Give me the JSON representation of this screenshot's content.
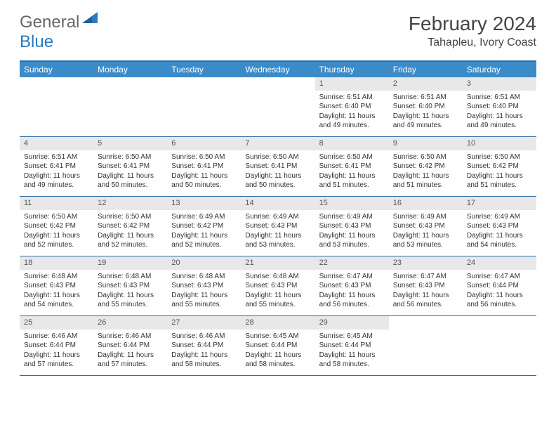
{
  "logo": {
    "general": "General",
    "blue": "Blue"
  },
  "header": {
    "month_title": "February 2024",
    "location": "Tahapleu, Ivory Coast"
  },
  "colors": {
    "header_bar": "#3b8bc9",
    "border": "#2a6da8",
    "daynum_bg": "#e8e8e8",
    "text": "#333333",
    "logo_blue": "#2a7abf"
  },
  "weekdays": [
    "Sunday",
    "Monday",
    "Tuesday",
    "Wednesday",
    "Thursday",
    "Friday",
    "Saturday"
  ],
  "weeks": [
    [
      {
        "empty": true
      },
      {
        "empty": true
      },
      {
        "empty": true
      },
      {
        "empty": true
      },
      {
        "num": "1",
        "sunrise": "Sunrise: 6:51 AM",
        "sunset": "Sunset: 6:40 PM",
        "daylight": "Daylight: 11 hours and 49 minutes."
      },
      {
        "num": "2",
        "sunrise": "Sunrise: 6:51 AM",
        "sunset": "Sunset: 6:40 PM",
        "daylight": "Daylight: 11 hours and 49 minutes."
      },
      {
        "num": "3",
        "sunrise": "Sunrise: 6:51 AM",
        "sunset": "Sunset: 6:40 PM",
        "daylight": "Daylight: 11 hours and 49 minutes."
      }
    ],
    [
      {
        "num": "4",
        "sunrise": "Sunrise: 6:51 AM",
        "sunset": "Sunset: 6:41 PM",
        "daylight": "Daylight: 11 hours and 49 minutes."
      },
      {
        "num": "5",
        "sunrise": "Sunrise: 6:50 AM",
        "sunset": "Sunset: 6:41 PM",
        "daylight": "Daylight: 11 hours and 50 minutes."
      },
      {
        "num": "6",
        "sunrise": "Sunrise: 6:50 AM",
        "sunset": "Sunset: 6:41 PM",
        "daylight": "Daylight: 11 hours and 50 minutes."
      },
      {
        "num": "7",
        "sunrise": "Sunrise: 6:50 AM",
        "sunset": "Sunset: 6:41 PM",
        "daylight": "Daylight: 11 hours and 50 minutes."
      },
      {
        "num": "8",
        "sunrise": "Sunrise: 6:50 AM",
        "sunset": "Sunset: 6:41 PM",
        "daylight": "Daylight: 11 hours and 51 minutes."
      },
      {
        "num": "9",
        "sunrise": "Sunrise: 6:50 AM",
        "sunset": "Sunset: 6:42 PM",
        "daylight": "Daylight: 11 hours and 51 minutes."
      },
      {
        "num": "10",
        "sunrise": "Sunrise: 6:50 AM",
        "sunset": "Sunset: 6:42 PM",
        "daylight": "Daylight: 11 hours and 51 minutes."
      }
    ],
    [
      {
        "num": "11",
        "sunrise": "Sunrise: 6:50 AM",
        "sunset": "Sunset: 6:42 PM",
        "daylight": "Daylight: 11 hours and 52 minutes."
      },
      {
        "num": "12",
        "sunrise": "Sunrise: 6:50 AM",
        "sunset": "Sunset: 6:42 PM",
        "daylight": "Daylight: 11 hours and 52 minutes."
      },
      {
        "num": "13",
        "sunrise": "Sunrise: 6:49 AM",
        "sunset": "Sunset: 6:42 PM",
        "daylight": "Daylight: 11 hours and 52 minutes."
      },
      {
        "num": "14",
        "sunrise": "Sunrise: 6:49 AM",
        "sunset": "Sunset: 6:43 PM",
        "daylight": "Daylight: 11 hours and 53 minutes."
      },
      {
        "num": "15",
        "sunrise": "Sunrise: 6:49 AM",
        "sunset": "Sunset: 6:43 PM",
        "daylight": "Daylight: 11 hours and 53 minutes."
      },
      {
        "num": "16",
        "sunrise": "Sunrise: 6:49 AM",
        "sunset": "Sunset: 6:43 PM",
        "daylight": "Daylight: 11 hours and 53 minutes."
      },
      {
        "num": "17",
        "sunrise": "Sunrise: 6:49 AM",
        "sunset": "Sunset: 6:43 PM",
        "daylight": "Daylight: 11 hours and 54 minutes."
      }
    ],
    [
      {
        "num": "18",
        "sunrise": "Sunrise: 6:48 AM",
        "sunset": "Sunset: 6:43 PM",
        "daylight": "Daylight: 11 hours and 54 minutes."
      },
      {
        "num": "19",
        "sunrise": "Sunrise: 6:48 AM",
        "sunset": "Sunset: 6:43 PM",
        "daylight": "Daylight: 11 hours and 55 minutes."
      },
      {
        "num": "20",
        "sunrise": "Sunrise: 6:48 AM",
        "sunset": "Sunset: 6:43 PM",
        "daylight": "Daylight: 11 hours and 55 minutes."
      },
      {
        "num": "21",
        "sunrise": "Sunrise: 6:48 AM",
        "sunset": "Sunset: 6:43 PM",
        "daylight": "Daylight: 11 hours and 55 minutes."
      },
      {
        "num": "22",
        "sunrise": "Sunrise: 6:47 AM",
        "sunset": "Sunset: 6:43 PM",
        "daylight": "Daylight: 11 hours and 56 minutes."
      },
      {
        "num": "23",
        "sunrise": "Sunrise: 6:47 AM",
        "sunset": "Sunset: 6:43 PM",
        "daylight": "Daylight: 11 hours and 56 minutes."
      },
      {
        "num": "24",
        "sunrise": "Sunrise: 6:47 AM",
        "sunset": "Sunset: 6:44 PM",
        "daylight": "Daylight: 11 hours and 56 minutes."
      }
    ],
    [
      {
        "num": "25",
        "sunrise": "Sunrise: 6:46 AM",
        "sunset": "Sunset: 6:44 PM",
        "daylight": "Daylight: 11 hours and 57 minutes."
      },
      {
        "num": "26",
        "sunrise": "Sunrise: 6:46 AM",
        "sunset": "Sunset: 6:44 PM",
        "daylight": "Daylight: 11 hours and 57 minutes."
      },
      {
        "num": "27",
        "sunrise": "Sunrise: 6:46 AM",
        "sunset": "Sunset: 6:44 PM",
        "daylight": "Daylight: 11 hours and 58 minutes."
      },
      {
        "num": "28",
        "sunrise": "Sunrise: 6:45 AM",
        "sunset": "Sunset: 6:44 PM",
        "daylight": "Daylight: 11 hours and 58 minutes."
      },
      {
        "num": "29",
        "sunrise": "Sunrise: 6:45 AM",
        "sunset": "Sunset: 6:44 PM",
        "daylight": "Daylight: 11 hours and 58 minutes."
      },
      {
        "empty": true
      },
      {
        "empty": true
      }
    ]
  ]
}
